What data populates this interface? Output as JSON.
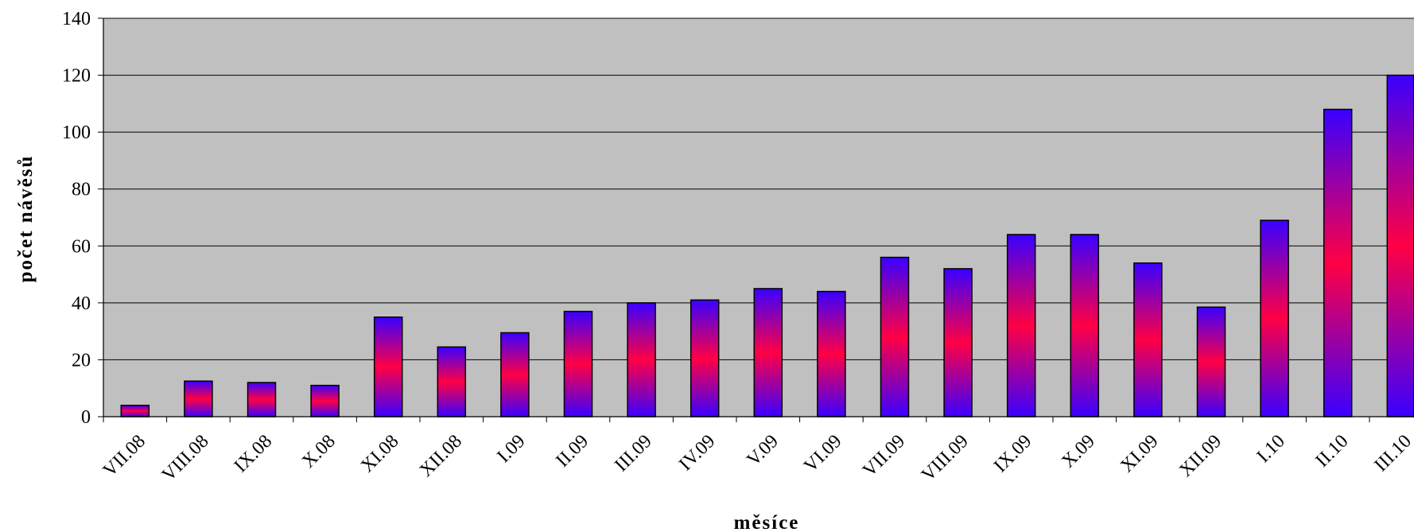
{
  "chart_data": {
    "type": "bar",
    "title": "",
    "xlabel": "měsíce",
    "ylabel": "počet návěsů",
    "ylim": [
      0,
      140
    ],
    "yticks": [
      0,
      20,
      40,
      60,
      80,
      100,
      120,
      140
    ],
    "grid": true,
    "legend": "none",
    "categories": [
      "VII.08",
      "VIII.08",
      "IX.08",
      "X.08",
      "XI.08",
      "XII.08",
      "I.09",
      "II.09",
      "III.09",
      "IV.09",
      "V.09",
      "VI.09",
      "VII.09",
      "VIII.09",
      "IX.09",
      "X.09",
      "XI.09",
      "XII.09",
      "I.10",
      "II.10",
      "III.10"
    ],
    "values": [
      4,
      12.5,
      12,
      11,
      35,
      24.5,
      29.5,
      37,
      40,
      41,
      45,
      44,
      56,
      52,
      64,
      64,
      54,
      38.5,
      69,
      108,
      120
    ],
    "colors": {
      "plot_bg": "#c0c0c0",
      "bar_top": "#3a00ff",
      "bar_mid": "#ff0044",
      "bar_bottom": "#3a00ff",
      "gridline": "#000000"
    }
  }
}
